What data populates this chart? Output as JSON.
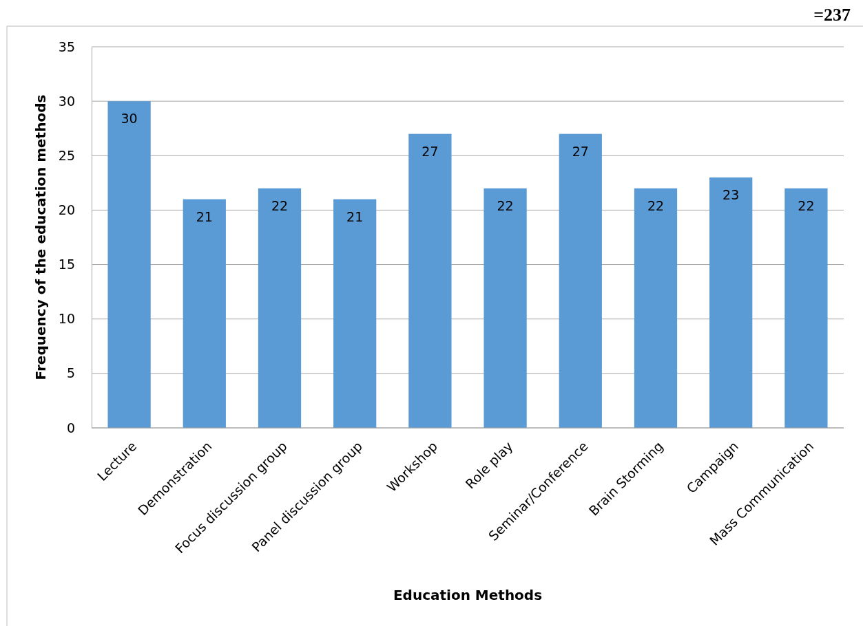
{
  "chart_data": {
    "type": "bar",
    "xlabel": "Education Methods",
    "ylabel": "Frequency of the education methods",
    "categories": [
      "Lecture",
      "Demonstration",
      "Focus discussion group",
      "Panel discussion group",
      "Workshop",
      "Role play",
      "Seminar/Conference",
      "Brain Storming",
      "Campaign",
      "Mass Communication"
    ],
    "values": [
      30,
      21,
      22,
      21,
      27,
      22,
      27,
      22,
      23,
      22
    ],
    "color": "#5b9bd5",
    "data_labels": true,
    "ylim": [
      0,
      35
    ],
    "yticks": [
      0,
      5,
      10,
      15,
      20,
      25,
      30,
      35
    ],
    "grid": "y",
    "annotations": [
      "=237"
    ]
  }
}
